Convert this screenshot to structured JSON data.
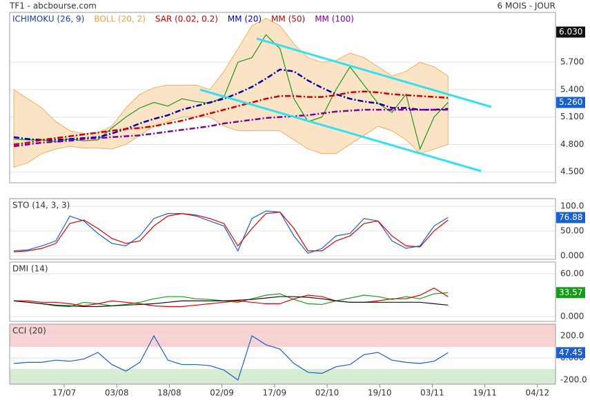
{
  "header": {
    "title": "TF1 - abcbourse.com",
    "period": "6 MOIS - JOUR"
  },
  "time_axis": {
    "labels": [
      "17/07",
      "03/08",
      "18/08",
      "02/09",
      "17/09",
      "02/10",
      "19/10",
      "03/11",
      "19/11",
      "04/12"
    ]
  },
  "chart_data": [
    {
      "type": "line",
      "indicators": [
        {
          "name": "ICHIMOKU (26, 9)",
          "color": "#1c3f94"
        },
        {
          "name": "BOLL (20, 2)",
          "color": "#e8a040"
        },
        {
          "name": "SAR (0.02, 0.2)",
          "color": "#c00000"
        },
        {
          "name": "MM (20)",
          "color": "#0000aa"
        },
        {
          "name": "MM (50)",
          "color": "#c00000"
        },
        {
          "name": "MM (100)",
          "color": "#7b00a0"
        }
      ],
      "ylim": [
        4.381,
        6.245
      ],
      "yticks": [
        {
          "value": 4.5,
          "label": "4.500"
        },
        {
          "value": 4.8,
          "label": "4.800"
        },
        {
          "value": 5.1,
          "label": "5.100"
        },
        {
          "value": 5.4,
          "label": "5.400"
        },
        {
          "value": 5.7,
          "label": "5.700"
        }
      ],
      "grid": true,
      "band": {
        "color": "#fbe3c6",
        "upper": [
          5.4,
          5.3,
          5.2,
          5.05,
          4.95,
          4.92,
          4.93,
          5.0,
          5.2,
          5.35,
          5.42,
          5.45,
          5.45,
          5.45,
          5.4,
          5.6,
          5.85,
          6.1,
          6.18,
          6.1,
          5.9,
          5.75,
          5.7,
          5.72,
          5.8,
          5.75,
          5.65,
          5.55,
          5.6,
          5.7,
          5.65,
          5.55
        ],
        "lower": [
          4.55,
          4.6,
          4.7,
          4.75,
          4.78,
          4.76,
          4.76,
          4.75,
          4.8,
          4.9,
          5.0,
          5.05,
          5.1,
          5.1,
          5.1,
          5.0,
          4.95,
          4.95,
          4.95,
          4.95,
          4.85,
          4.75,
          4.7,
          4.7,
          4.8,
          4.9,
          5.0,
          4.95,
          4.85,
          4.7,
          4.75,
          4.8
        ]
      },
      "series": [
        {
          "color": "#1a9a1a",
          "values": [
            4.86,
            4.85,
            4.85,
            4.83,
            4.86,
            4.84,
            4.85,
            4.98,
            5.1,
            5.2,
            5.26,
            5.22,
            5.3,
            5.27,
            5.25,
            5.32,
            5.7,
            5.75,
            6.0,
            5.85,
            5.3,
            5.05,
            5.1,
            5.4,
            5.65,
            5.45,
            5.25,
            5.15,
            5.35,
            4.75,
            5.1,
            5.26
          ]
        },
        {
          "color": "#0000aa",
          "values": [
            4.88,
            4.86,
            4.85,
            4.85,
            4.86,
            4.87,
            4.88,
            4.92,
            4.97,
            5.03,
            5.08,
            5.12,
            5.18,
            5.22,
            5.26,
            5.3,
            5.36,
            5.43,
            5.52,
            5.62,
            5.6,
            5.5,
            5.42,
            5.35,
            5.3,
            5.27,
            5.25,
            5.2,
            5.2,
            5.18,
            5.18,
            5.19
          ]
        },
        {
          "color": "#cc0000",
          "values": [
            4.8,
            4.82,
            4.85,
            4.87,
            4.89,
            4.91,
            4.93,
            4.95,
            4.97,
            4.98,
            5.0,
            5.03,
            5.06,
            5.1,
            5.14,
            5.18,
            5.22,
            5.26,
            5.3,
            5.33,
            5.33,
            5.32,
            5.32,
            5.34,
            5.37,
            5.38,
            5.37,
            5.35,
            5.34,
            5.33,
            5.32,
            5.31
          ]
        },
        {
          "color": "#7b00a0",
          "values": [
            4.78,
            4.8,
            4.82,
            4.83,
            4.84,
            4.86,
            4.87,
            4.88,
            4.89,
            4.9,
            4.92,
            4.94,
            4.96,
            4.98,
            5.0,
            5.03,
            5.05,
            5.07,
            5.09,
            5.1,
            5.11,
            5.12,
            5.14,
            5.16,
            5.17,
            5.18,
            5.18,
            5.18,
            5.18,
            5.18,
            5.18,
            5.18
          ]
        }
      ],
      "last_labels": [
        {
          "value": 6.03,
          "label": "6.030",
          "color": "#111111"
        },
        {
          "value": 5.26,
          "label": "5.260",
          "color": "#1a5fd0"
        }
      ]
    },
    {
      "type": "line",
      "title": "STO (14, 3, 3)",
      "ylim": [
        -7,
        115
      ],
      "yticks": [
        {
          "value": 0,
          "label": "0.000"
        },
        {
          "value": 50,
          "label": "50.00"
        },
        {
          "value": 100,
          "label": "100.0"
        }
      ],
      "grid": true,
      "series": [
        {
          "color": "#1a5fd0",
          "values": [
            10,
            12,
            20,
            30,
            80,
            70,
            45,
            25,
            20,
            40,
            75,
            85,
            85,
            80,
            70,
            60,
            10,
            75,
            90,
            88,
            40,
            5,
            15,
            40,
            45,
            75,
            70,
            30,
            15,
            20,
            60,
            77
          ]
        },
        {
          "color": "#dd0000",
          "values": [
            8,
            10,
            15,
            25,
            65,
            72,
            55,
            35,
            25,
            30,
            60,
            80,
            85,
            82,
            75,
            65,
            20,
            55,
            85,
            88,
            55,
            10,
            10,
            30,
            40,
            65,
            70,
            40,
            20,
            18,
            50,
            72
          ]
        }
      ],
      "last_labels": [
        {
          "value": 76.88,
          "label": "76.88",
          "color": "#1a5fd0"
        }
      ]
    },
    {
      "type": "line",
      "title": "DMI (14)",
      "ylim": [
        -6.8,
        76.5
      ],
      "yticks": [
        {
          "value": 0,
          "label": "0.000"
        },
        {
          "value": 60,
          "label": "60.00"
        }
      ],
      "grid": true,
      "series": [
        {
          "color": "#1a9a1a",
          "values": [
            22,
            20,
            18,
            15,
            14,
            20,
            18,
            15,
            17,
            20,
            25,
            28,
            28,
            25,
            24,
            22,
            20,
            25,
            30,
            32,
            24,
            18,
            17,
            22,
            26,
            30,
            28,
            24,
            28,
            25,
            32,
            33.57
          ]
        },
        {
          "color": "#dd0000",
          "values": [
            22,
            22,
            20,
            20,
            18,
            15,
            18,
            22,
            20,
            18,
            15,
            14,
            14,
            16,
            18,
            20,
            22,
            20,
            18,
            18,
            25,
            30,
            28,
            22,
            20,
            20,
            22,
            25,
            25,
            30,
            40,
            28
          ]
        },
        {
          "color": "#111111",
          "values": [
            22,
            20,
            18,
            16,
            15,
            14,
            14,
            15,
            16,
            17,
            18,
            20,
            22,
            22,
            22,
            22,
            23,
            24,
            26,
            28,
            28,
            27,
            25,
            22,
            20,
            20,
            20,
            20,
            20,
            20,
            18,
            16
          ]
        }
      ],
      "last_labels": [
        {
          "value": 33.57,
          "label": "33.57",
          "color": "#1a9a1a"
        }
      ]
    },
    {
      "type": "line",
      "title": "CCI (20)",
      "ylim": [
        -237.5,
        306
      ],
      "yticks": [
        {
          "value": -200,
          "label": "-200.0"
        },
        {
          "value": 0,
          "label": "0.000"
        },
        {
          "value": 200,
          "label": "200.0"
        }
      ],
      "grid": true,
      "zones": [
        {
          "from": 100,
          "color": "#f8d2d2"
        },
        {
          "to": -100,
          "color": "#d6ecd3"
        }
      ],
      "series": [
        {
          "color": "#1a5fd0",
          "values": [
            -50,
            -40,
            -40,
            -20,
            -30,
            -10,
            50,
            -60,
            -120,
            -40,
            200,
            -20,
            -60,
            -60,
            -70,
            -110,
            -200,
            200,
            120,
            80,
            -50,
            -130,
            -140,
            -80,
            -60,
            30,
            50,
            -20,
            -40,
            -50,
            -30,
            47.45
          ]
        }
      ],
      "last_labels": [
        {
          "value": 47.45,
          "label": "47.45",
          "color": "#1a5fd0"
        }
      ]
    }
  ]
}
